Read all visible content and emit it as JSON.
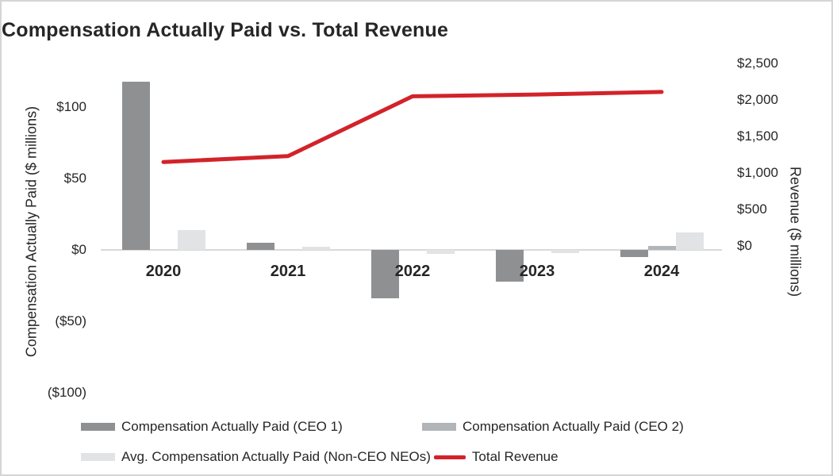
{
  "title": "Compensation Actually Paid vs. Total Revenue",
  "chart_data": {
    "type": "bar",
    "subtype": "combo-bar-line-dual-axis",
    "categories": [
      "2020",
      "2021",
      "2022",
      "2023",
      "2024"
    ],
    "series": [
      {
        "name": "Compensation Actually Paid (CEO 1)",
        "render": "bar",
        "axis": "left",
        "color": "#8e9092",
        "values": [
          118,
          5,
          -34,
          -22,
          -5
        ]
      },
      {
        "name": "Compensation Actually Paid (CEO 2)",
        "render": "bar",
        "axis": "left",
        "color": "#b2b5b7",
        "values": [
          0,
          0,
          0,
          0,
          3
        ]
      },
      {
        "name": "Avg. Compensation Actually Paid (Non-CEO NEOs)",
        "render": "bar",
        "axis": "left",
        "color": "#e2e3e4",
        "values": [
          14,
          2,
          -3,
          -2,
          12
        ]
      },
      {
        "name": "Total Revenue",
        "render": "line",
        "axis": "right",
        "color": "#d2232a",
        "values": [
          1150,
          1230,
          2050,
          2075,
          2110
        ]
      }
    ],
    "left_axis": {
      "label": "Compensation Actually Paid ($ millions)",
      "tick_labels": [
        "$100",
        "$50",
        "$0",
        "($50)",
        "($100)"
      ],
      "tick_values": [
        100,
        50,
        0,
        -50,
        -100
      ],
      "range": [
        -150,
        150
      ]
    },
    "right_axis": {
      "label": "Revenue ($ millions)",
      "tick_labels": [
        "$2,500",
        "$2,000",
        "$1,500",
        "$1,000",
        "$500",
        "$0"
      ],
      "tick_values": [
        2500,
        2000,
        1500,
        1000,
        500,
        0
      ],
      "range": [
        0,
        2750
      ]
    },
    "grid": false,
    "legend_position": "bottom",
    "background_color": "#ffffff",
    "baseline_color": "#d9d9d9",
    "border_color": "#d5d5d5"
  }
}
